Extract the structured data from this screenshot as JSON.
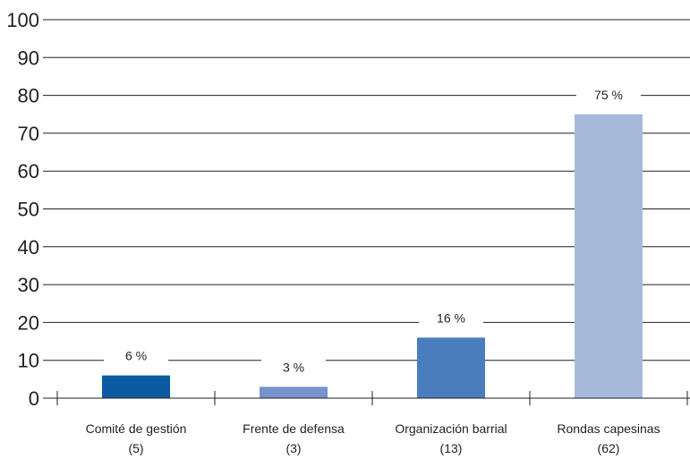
{
  "chart_data": {
    "type": "bar",
    "categories": [
      "Comité de gestión",
      "Frente de defensa",
      "Organización barrial",
      "Rondas capesinas"
    ],
    "counts": [
      "(5)",
      "(3)",
      "(13)",
      "(62)"
    ],
    "values": [
      6,
      3,
      16,
      75
    ],
    "value_labels": [
      "6 %",
      "3 %",
      "16 %",
      "75 %"
    ],
    "bar_colors": [
      "#0b5aa1",
      "#7894cf",
      "#4a7dbe",
      "#a8badc"
    ],
    "ylim": [
      0,
      100
    ],
    "yticks": [
      "0",
      "10",
      "20",
      "30",
      "40",
      "50",
      "60",
      "70",
      "80",
      "90",
      "100"
    ],
    "grid": true,
    "title": "",
    "xlabel": "",
    "ylabel": ""
  }
}
